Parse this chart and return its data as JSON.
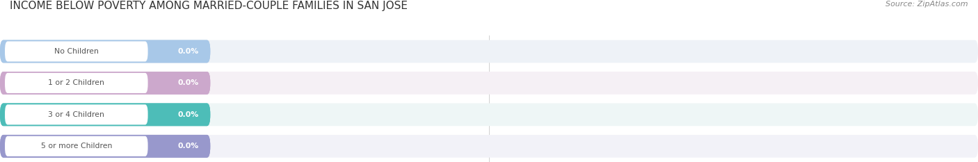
{
  "title": "INCOME BELOW POVERTY AMONG MARRIED-COUPLE FAMILIES IN SAN JOSE",
  "source": "Source: ZipAtlas.com",
  "categories": [
    "No Children",
    "1 or 2 Children",
    "3 or 4 Children",
    "5 or more Children"
  ],
  "values": [
    0.0,
    0.0,
    0.0,
    0.0
  ],
  "bar_colors": [
    "#a8c8e8",
    "#cca8cc",
    "#4dbdb8",
    "#9898cc"
  ],
  "row_bg_colors": [
    "#eef2f7",
    "#f5f0f5",
    "#eef6f6",
    "#f2f2f8"
  ],
  "title_fontsize": 11,
  "source_fontsize": 8,
  "background_color": "#ffffff",
  "label_text_color": "#555555",
  "value_text_color": "#ffffff",
  "grid_color": "#d0d0d0",
  "tick_color": "#999999"
}
